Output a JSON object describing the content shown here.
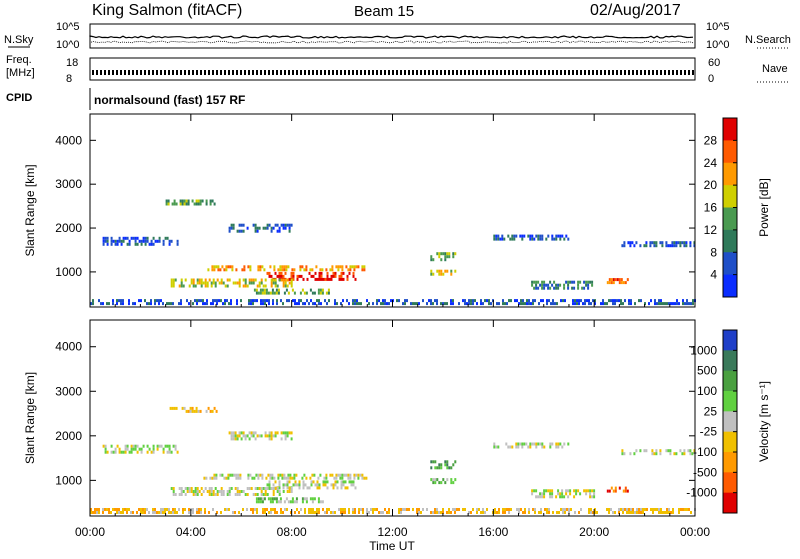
{
  "header": {
    "station": "King Salmon (fitACF)",
    "beam": "Beam 15",
    "date": "02/Aug/2017"
  },
  "top_panels": {
    "nsky_label": "N.Sky",
    "nsearch_label": "N.Search",
    "freq_label_1": "Freq.",
    "freq_label_2": "[MHz]",
    "nave_label": "Nave",
    "cpid_label": "CPID",
    "cpid_value": "normalsound (fast) 157 RF",
    "noise_ticks_left": [
      "10^5",
      "10^0"
    ],
    "noise_ticks_right": [
      "10^5",
      "10^0"
    ],
    "freq_ticks": [
      "18",
      "8"
    ],
    "nave_ticks": [
      "60",
      "0"
    ]
  },
  "chart_data": [
    {
      "type": "heatmap",
      "quantity": "Power",
      "ylabel": "Slant Range [km]",
      "ylim": [
        200,
        4600
      ],
      "y_ticks": [
        "1000",
        "2000",
        "3000",
        "4000"
      ],
      "x_ticks": [
        "00:00",
        "04:00",
        "08:00",
        "12:00",
        "16:00",
        "20:00",
        "00:00"
      ],
      "xlim_hours": [
        0,
        24
      ],
      "colorbar_label": "Power [dB]",
      "colorbar_ticks": [
        "4",
        "8",
        "12",
        "16",
        "20",
        "24",
        "28"
      ],
      "colorbar_range": [
        0,
        32
      ],
      "colors": [
        "#0a2dff",
        "#1f4fc8",
        "#2f7a5a",
        "#4a9a50",
        "#cfcf00",
        "#ff9a00",
        "#ff5a00",
        "#e00000"
      ],
      "echo_regions": [
        {
          "t": [
            4.5,
            11.0
          ],
          "r": [
            1050,
            1150
          ],
          "level": 5
        },
        {
          "t": [
            7.0,
            10.5
          ],
          "r": [
            850,
            1000
          ],
          "level": 7
        },
        {
          "t": [
            3.2,
            8.0
          ],
          "r": [
            650,
            850
          ],
          "level": 4
        },
        {
          "t": [
            6.5,
            9.5
          ],
          "r": [
            500,
            620
          ],
          "level": 3
        },
        {
          "t": [
            0.0,
            24.0
          ],
          "r": [
            250,
            380
          ],
          "level": 1
        },
        {
          "t": [
            0.5,
            3.5
          ],
          "r": [
            1650,
            1800
          ],
          "level": 1
        },
        {
          "t": [
            5.5,
            8.0
          ],
          "r": [
            1900,
            2100
          ],
          "level": 1
        },
        {
          "t": [
            3.0,
            5.0
          ],
          "r": [
            2550,
            2650
          ],
          "level": 3
        },
        {
          "t": [
            13.5,
            14.5
          ],
          "r": [
            1300,
            1450
          ],
          "level": 3
        },
        {
          "t": [
            13.5,
            14.5
          ],
          "r": [
            950,
            1050
          ],
          "level": 4
        },
        {
          "t": [
            16.0,
            19.0
          ],
          "r": [
            1750,
            1850
          ],
          "level": 1
        },
        {
          "t": [
            17.5,
            20.0
          ],
          "r": [
            650,
            800
          ],
          "level": 2
        },
        {
          "t": [
            20.5,
            21.3
          ],
          "r": [
            760,
            860
          ],
          "level": 6
        },
        {
          "t": [
            21.0,
            24.0
          ],
          "r": [
            1600,
            1700
          ],
          "level": 1
        }
      ]
    },
    {
      "type": "heatmap",
      "quantity": "Velocity",
      "ylabel": "Slant Range [km]",
      "ylim": [
        200,
        4600
      ],
      "y_ticks": [
        "1000",
        "2000",
        "3000",
        "4000"
      ],
      "x_ticks": [
        "00:00",
        "04:00",
        "08:00",
        "12:00",
        "16:00",
        "20:00",
        "00:00"
      ],
      "xlim_hours": [
        0,
        24
      ],
      "xlabel": "Time UT",
      "colorbar_label": "Velocity [m s⁻¹]",
      "colorbar_ticks": [
        "1000",
        "500",
        "100",
        "25",
        "-25",
        "-100",
        "-500",
        "-1000"
      ],
      "colors": [
        "#1f3fc8",
        "#3a7a5a",
        "#4aa040",
        "#60d040",
        "#c0c0c0",
        "#f0c000",
        "#ff9a00",
        "#ff5a00",
        "#e00000"
      ],
      "echo_regions": [
        {
          "t": [
            4.5,
            11.0
          ],
          "r": [
            1050,
            1150
          ],
          "level": 4
        },
        {
          "t": [
            7.0,
            10.5
          ],
          "r": [
            850,
            1000
          ],
          "level": 4
        },
        {
          "t": [
            3.2,
            8.0
          ],
          "r": [
            650,
            850
          ],
          "level": 4
        },
        {
          "t": [
            6.5,
            9.5
          ],
          "r": [
            500,
            620
          ],
          "level": 3
        },
        {
          "t": [
            0.0,
            24.0
          ],
          "r": [
            250,
            380
          ],
          "level": 5
        },
        {
          "t": [
            0.5,
            3.5
          ],
          "r": [
            1650,
            1800
          ],
          "level": 4
        },
        {
          "t": [
            5.5,
            8.0
          ],
          "r": [
            1900,
            2100
          ],
          "level": 4
        },
        {
          "t": [
            3.0,
            5.0
          ],
          "r": [
            2550,
            2650
          ],
          "level": 5
        },
        {
          "t": [
            13.5,
            14.5
          ],
          "r": [
            1300,
            1450
          ],
          "level": 2
        },
        {
          "t": [
            13.5,
            14.5
          ],
          "r": [
            950,
            1050
          ],
          "level": 3
        },
        {
          "t": [
            16.0,
            19.0
          ],
          "r": [
            1750,
            1850
          ],
          "level": 4
        },
        {
          "t": [
            17.5,
            20.0
          ],
          "r": [
            650,
            800
          ],
          "level": 4
        },
        {
          "t": [
            20.5,
            21.3
          ],
          "r": [
            760,
            860
          ],
          "level": 7
        },
        {
          "t": [
            21.0,
            24.0
          ],
          "r": [
            1600,
            1700
          ],
          "level": 4
        }
      ]
    }
  ]
}
